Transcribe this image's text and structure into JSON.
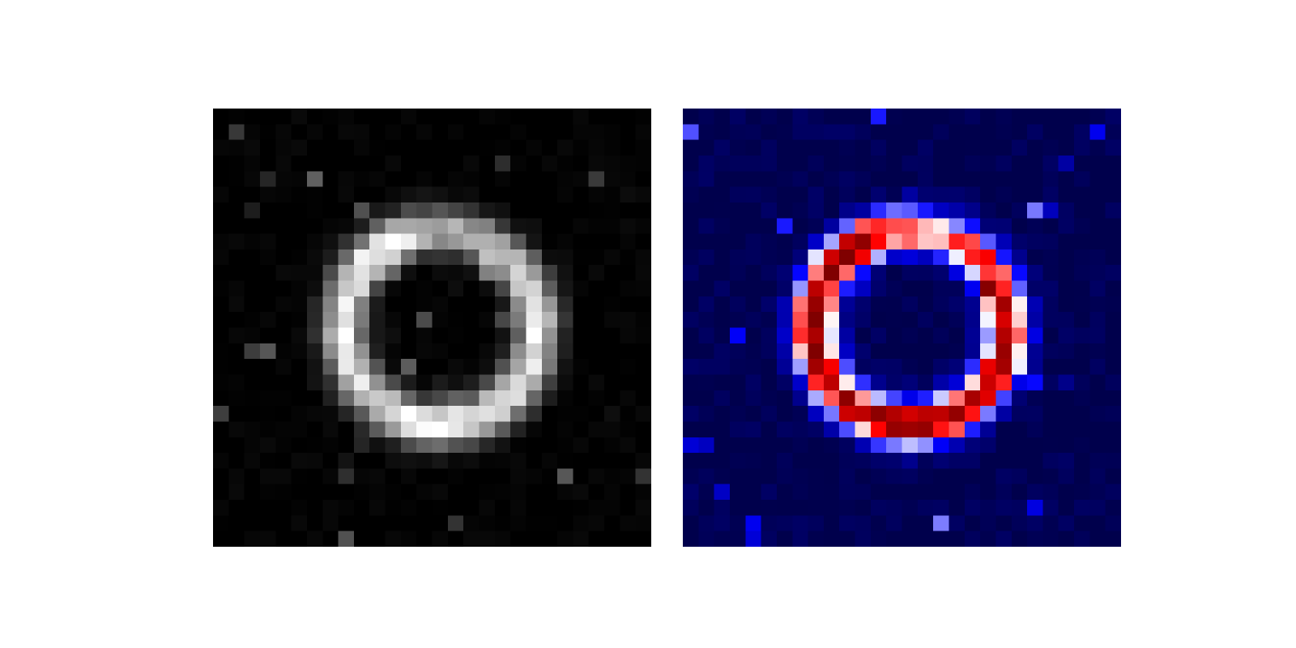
{
  "chart_data": [
    {
      "type": "heatmap",
      "colormap": "gray",
      "vmin": 0,
      "vmax": 1,
      "rows": 28,
      "cols": 28,
      "grid": false,
      "ring": {
        "cx": 14.0,
        "cy": 13.5,
        "r": 6.2,
        "w": 1.4,
        "seed": 7,
        "peaks": [
          [
            -2.2,
            4.0
          ],
          [
            0.2,
            0.5
          ],
          [
            1.6,
            3.2
          ],
          [
            3.0,
            0.9
          ]
        ]
      }
    },
    {
      "type": "heatmap",
      "colormap": "seismic",
      "vmin": 0,
      "vmax": 1,
      "rows": 28,
      "cols": 28,
      "grid": false,
      "ring": {
        "cx": 14.0,
        "cy": 13.5,
        "r": 6.2,
        "w": 1.4,
        "seed": 13,
        "peaks": [
          [
            -2.2,
            4.0
          ],
          [
            0.2,
            0.5
          ],
          [
            1.6,
            3.2
          ],
          [
            3.0,
            0.9
          ]
        ]
      }
    }
  ]
}
